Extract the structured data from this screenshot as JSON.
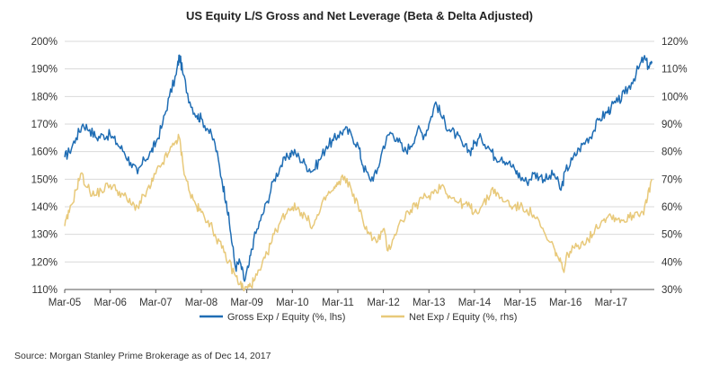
{
  "chart_data": {
    "type": "line",
    "title": "US Equity L/S Gross and Net Leverage (Beta & Delta Adjusted)",
    "source": "Source: Morgan Stanley Prime Brokerage as of Dec 14, 2017",
    "x_range": [
      2005.0,
      2017.95
    ],
    "x_ticks": [
      {
        "label": "Mar-05",
        "x": 2005.0
      },
      {
        "label": "Mar-06",
        "x": 2006.0
      },
      {
        "label": "Mar-07",
        "x": 2007.0
      },
      {
        "label": "Mar-08",
        "x": 2008.0
      },
      {
        "label": "Mar-09",
        "x": 2009.0
      },
      {
        "label": "Mar-10",
        "x": 2010.0
      },
      {
        "label": "Mar-11",
        "x": 2011.0
      },
      {
        "label": "Mar-12",
        "x": 2012.0
      },
      {
        "label": "Mar-13",
        "x": 2013.0
      },
      {
        "label": "Mar-14",
        "x": 2014.0
      },
      {
        "label": "Mar-15",
        "x": 2015.0
      },
      {
        "label": "Mar-16",
        "x": 2016.0
      },
      {
        "label": "Mar-17",
        "x": 2017.0
      }
    ],
    "y_left": {
      "label": "Gross Exp / Equity (%)",
      "ylim": [
        110,
        200
      ],
      "ticks": [
        {
          "label": "110%",
          "value": 110
        },
        {
          "label": "120%",
          "value": 120
        },
        {
          "label": "130%",
          "value": 130
        },
        {
          "label": "140%",
          "value": 140
        },
        {
          "label": "150%",
          "value": 150
        },
        {
          "label": "160%",
          "value": 160
        },
        {
          "label": "170%",
          "value": 170
        },
        {
          "label": "180%",
          "value": 180
        },
        {
          "label": "190%",
          "value": 190
        },
        {
          "label": "200%",
          "value": 200
        }
      ]
    },
    "y_right": {
      "label": "Net Exp / Equity (%)",
      "ylim": [
        30,
        120
      ],
      "ticks": [
        {
          "label": "30%",
          "value": 30
        },
        {
          "label": "40%",
          "value": 40
        },
        {
          "label": "50%",
          "value": 50
        },
        {
          "label": "60%",
          "value": 60
        },
        {
          "label": "70%",
          "value": 70
        },
        {
          "label": "80%",
          "value": 80
        },
        {
          "label": "90%",
          "value": 90
        },
        {
          "label": "100%",
          "value": 100
        },
        {
          "label": "110%",
          "value": 110
        },
        {
          "label": "120%",
          "value": 120
        }
      ]
    },
    "grid": {
      "horizontal": true,
      "vertical": false
    },
    "legend_position": "bottom-center",
    "series": [
      {
        "name": "Gross Exp / Equity (%, lhs)",
        "axis": "left",
        "color": "#1f6db4",
        "points": [
          [
            2005.0,
            158
          ],
          [
            2005.1,
            160
          ],
          [
            2005.25,
            165
          ],
          [
            2005.4,
            170
          ],
          [
            2005.55,
            168
          ],
          [
            2005.7,
            165
          ],
          [
            2005.85,
            166
          ],
          [
            2006.0,
            166
          ],
          [
            2006.15,
            163
          ],
          [
            2006.3,
            160
          ],
          [
            2006.45,
            156
          ],
          [
            2006.6,
            152
          ],
          [
            2006.75,
            157
          ],
          [
            2006.9,
            160
          ],
          [
            2007.0,
            163
          ],
          [
            2007.15,
            170
          ],
          [
            2007.3,
            180
          ],
          [
            2007.45,
            188
          ],
          [
            2007.52,
            195
          ],
          [
            2007.6,
            188
          ],
          [
            2007.75,
            178
          ],
          [
            2007.9,
            173
          ],
          [
            2008.0,
            172
          ],
          [
            2008.15,
            168
          ],
          [
            2008.3,
            163
          ],
          [
            2008.45,
            150
          ],
          [
            2008.55,
            142
          ],
          [
            2008.65,
            130
          ],
          [
            2008.75,
            118
          ],
          [
            2008.85,
            120
          ],
          [
            2008.95,
            113
          ],
          [
            2009.05,
            119
          ],
          [
            2009.15,
            128
          ],
          [
            2009.3,
            135
          ],
          [
            2009.45,
            142
          ],
          [
            2009.6,
            150
          ],
          [
            2009.75,
            155
          ],
          [
            2009.9,
            158
          ],
          [
            2010.0,
            160
          ],
          [
            2010.15,
            158
          ],
          [
            2010.3,
            155
          ],
          [
            2010.45,
            153
          ],
          [
            2010.6,
            157
          ],
          [
            2010.75,
            162
          ],
          [
            2010.9,
            164
          ],
          [
            2011.0,
            166
          ],
          [
            2011.15,
            168
          ],
          [
            2011.3,
            166
          ],
          [
            2011.45,
            162
          ],
          [
            2011.55,
            155
          ],
          [
            2011.7,
            150
          ],
          [
            2011.85,
            152
          ],
          [
            2012.0,
            162
          ],
          [
            2012.15,
            167
          ],
          [
            2012.3,
            165
          ],
          [
            2012.45,
            160
          ],
          [
            2012.6,
            162
          ],
          [
            2012.75,
            168
          ],
          [
            2012.9,
            166
          ],
          [
            2013.0,
            170
          ],
          [
            2013.15,
            178
          ],
          [
            2013.3,
            172
          ],
          [
            2013.45,
            168
          ],
          [
            2013.6,
            166
          ],
          [
            2013.75,
            162
          ],
          [
            2013.9,
            160
          ],
          [
            2014.0,
            163
          ],
          [
            2014.15,
            165
          ],
          [
            2014.3,
            162
          ],
          [
            2014.45,
            158
          ],
          [
            2014.6,
            158
          ],
          [
            2014.75,
            156
          ],
          [
            2014.9,
            153
          ],
          [
            2015.0,
            151
          ],
          [
            2015.15,
            149
          ],
          [
            2015.3,
            152
          ],
          [
            2015.45,
            151
          ],
          [
            2015.6,
            150
          ],
          [
            2015.75,
            152
          ],
          [
            2015.9,
            146
          ],
          [
            2016.0,
            153
          ],
          [
            2016.15,
            157
          ],
          [
            2016.3,
            161
          ],
          [
            2016.45,
            164
          ],
          [
            2016.6,
            167
          ],
          [
            2016.75,
            172
          ],
          [
            2016.9,
            174
          ],
          [
            2017.0,
            176
          ],
          [
            2017.15,
            178
          ],
          [
            2017.3,
            181
          ],
          [
            2017.45,
            185
          ],
          [
            2017.6,
            190
          ],
          [
            2017.72,
            194
          ],
          [
            2017.82,
            191
          ],
          [
            2017.9,
            192
          ]
        ]
      },
      {
        "name": "Net Exp / Equity (%, rhs)",
        "axis": "right",
        "color": "#e8c97a",
        "points": [
          [
            2005.0,
            53
          ],
          [
            2005.1,
            58
          ],
          [
            2005.25,
            66
          ],
          [
            2005.35,
            72
          ],
          [
            2005.5,
            67
          ],
          [
            2005.65,
            64
          ],
          [
            2005.8,
            66
          ],
          [
            2006.0,
            68
          ],
          [
            2006.15,
            66
          ],
          [
            2006.3,
            64
          ],
          [
            2006.45,
            61
          ],
          [
            2006.6,
            60
          ],
          [
            2006.75,
            64
          ],
          [
            2006.9,
            68
          ],
          [
            2007.0,
            72
          ],
          [
            2007.15,
            76
          ],
          [
            2007.3,
            80
          ],
          [
            2007.45,
            84
          ],
          [
            2007.52,
            85
          ],
          [
            2007.6,
            75
          ],
          [
            2007.75,
            65
          ],
          [
            2007.9,
            60
          ],
          [
            2008.0,
            58
          ],
          [
            2008.15,
            55
          ],
          [
            2008.3,
            50
          ],
          [
            2008.45,
            45
          ],
          [
            2008.6,
            40
          ],
          [
            2008.75,
            35
          ],
          [
            2008.85,
            32
          ],
          [
            2008.95,
            30
          ],
          [
            2009.05,
            31
          ],
          [
            2009.15,
            33
          ],
          [
            2009.3,
            37
          ],
          [
            2009.45,
            43
          ],
          [
            2009.6,
            50
          ],
          [
            2009.75,
            55
          ],
          [
            2009.9,
            59
          ],
          [
            2010.0,
            60
          ],
          [
            2010.15,
            59
          ],
          [
            2010.3,
            56
          ],
          [
            2010.45,
            53
          ],
          [
            2010.6,
            58
          ],
          [
            2010.75,
            64
          ],
          [
            2010.9,
            66
          ],
          [
            2011.0,
            68
          ],
          [
            2011.15,
            71
          ],
          [
            2011.3,
            66
          ],
          [
            2011.45,
            60
          ],
          [
            2011.55,
            55
          ],
          [
            2011.7,
            50
          ],
          [
            2011.85,
            47
          ],
          [
            2012.0,
            52
          ],
          [
            2012.1,
            44
          ],
          [
            2012.25,
            50
          ],
          [
            2012.4,
            55
          ],
          [
            2012.55,
            58
          ],
          [
            2012.7,
            60
          ],
          [
            2012.85,
            63
          ],
          [
            2013.0,
            64
          ],
          [
            2013.15,
            66
          ],
          [
            2013.3,
            68
          ],
          [
            2013.45,
            64
          ],
          [
            2013.6,
            62
          ],
          [
            2013.75,
            61
          ],
          [
            2013.9,
            60
          ],
          [
            2014.0,
            58
          ],
          [
            2014.15,
            60
          ],
          [
            2014.3,
            63
          ],
          [
            2014.4,
            67
          ],
          [
            2014.55,
            63
          ],
          [
            2014.7,
            62
          ],
          [
            2014.85,
            60
          ],
          [
            2015.0,
            60
          ],
          [
            2015.15,
            59
          ],
          [
            2015.3,
            57
          ],
          [
            2015.45,
            53
          ],
          [
            2015.6,
            48
          ],
          [
            2015.75,
            45
          ],
          [
            2015.85,
            41
          ],
          [
            2015.95,
            37
          ],
          [
            2016.05,
            43
          ],
          [
            2016.2,
            45
          ],
          [
            2016.35,
            47
          ],
          [
            2016.5,
            48
          ],
          [
            2016.65,
            52
          ],
          [
            2016.8,
            55
          ],
          [
            2016.95,
            57
          ],
          [
            2017.1,
            56
          ],
          [
            2017.25,
            55
          ],
          [
            2017.4,
            56
          ],
          [
            2017.55,
            58
          ],
          [
            2017.7,
            58
          ],
          [
            2017.8,
            63
          ],
          [
            2017.9,
            70
          ]
        ]
      }
    ]
  }
}
